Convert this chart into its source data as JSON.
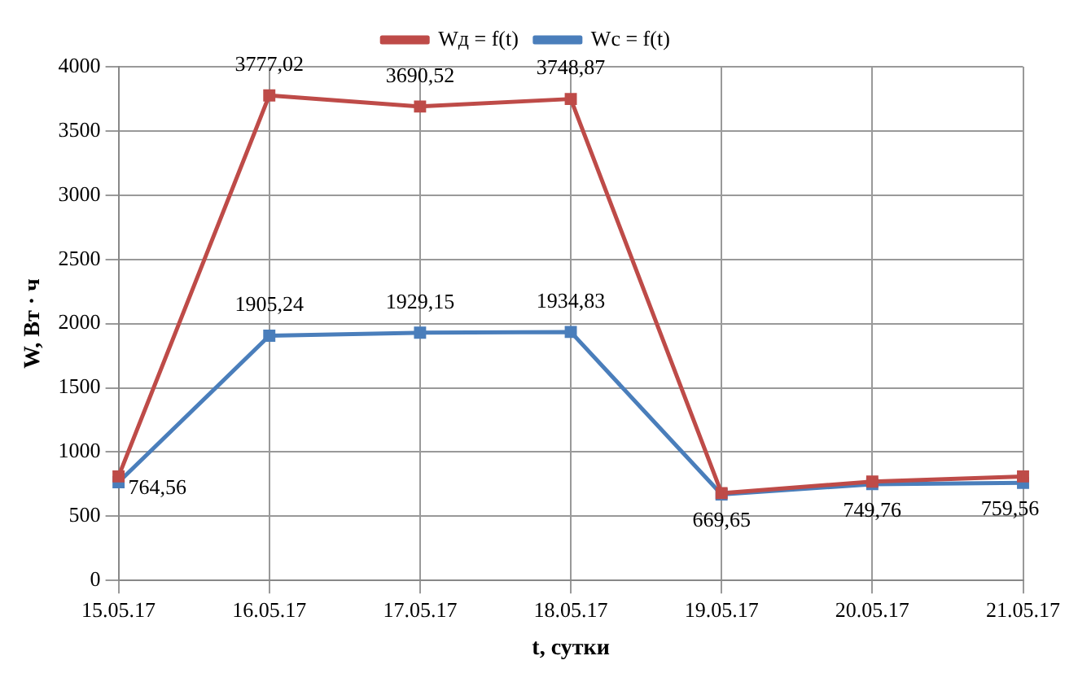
{
  "chart_data": {
    "type": "line",
    "xlabel": "t, сутки",
    "ylabel": "W, Вт · ч",
    "categories": [
      "15.05.17",
      "16.05.17",
      "17.05.17",
      "18.05.17",
      "19.05.17",
      "20.05.17",
      "21.05.17"
    ],
    "series": [
      {
        "name": "Wс = f(t)",
        "color": "#4a7ebb",
        "values": [
          764.56,
          1905.24,
          1929.15,
          1934.83,
          669.65,
          749.76,
          759.56
        ],
        "value_labels": [
          "764,56",
          "1905,24",
          "1929,15",
          "1934,83",
          "669,65",
          "749,76",
          "759,56"
        ]
      },
      {
        "name": "Wд = f(t)",
        "color": "#be4b48",
        "values": [
          810,
          3777.02,
          3690.52,
          3748.87,
          680,
          770,
          810
        ],
        "value_labels": [
          null,
          "3777,02",
          "3690,52",
          "3748,87",
          null,
          null,
          null
        ]
      }
    ],
    "ylim": [
      0,
      4000
    ],
    "yticks": [
      0,
      500,
      1000,
      1500,
      2000,
      2500,
      3000,
      3500,
      4000
    ],
    "grid": true,
    "legend": "top",
    "marker": "square",
    "line_style": "solid"
  }
}
